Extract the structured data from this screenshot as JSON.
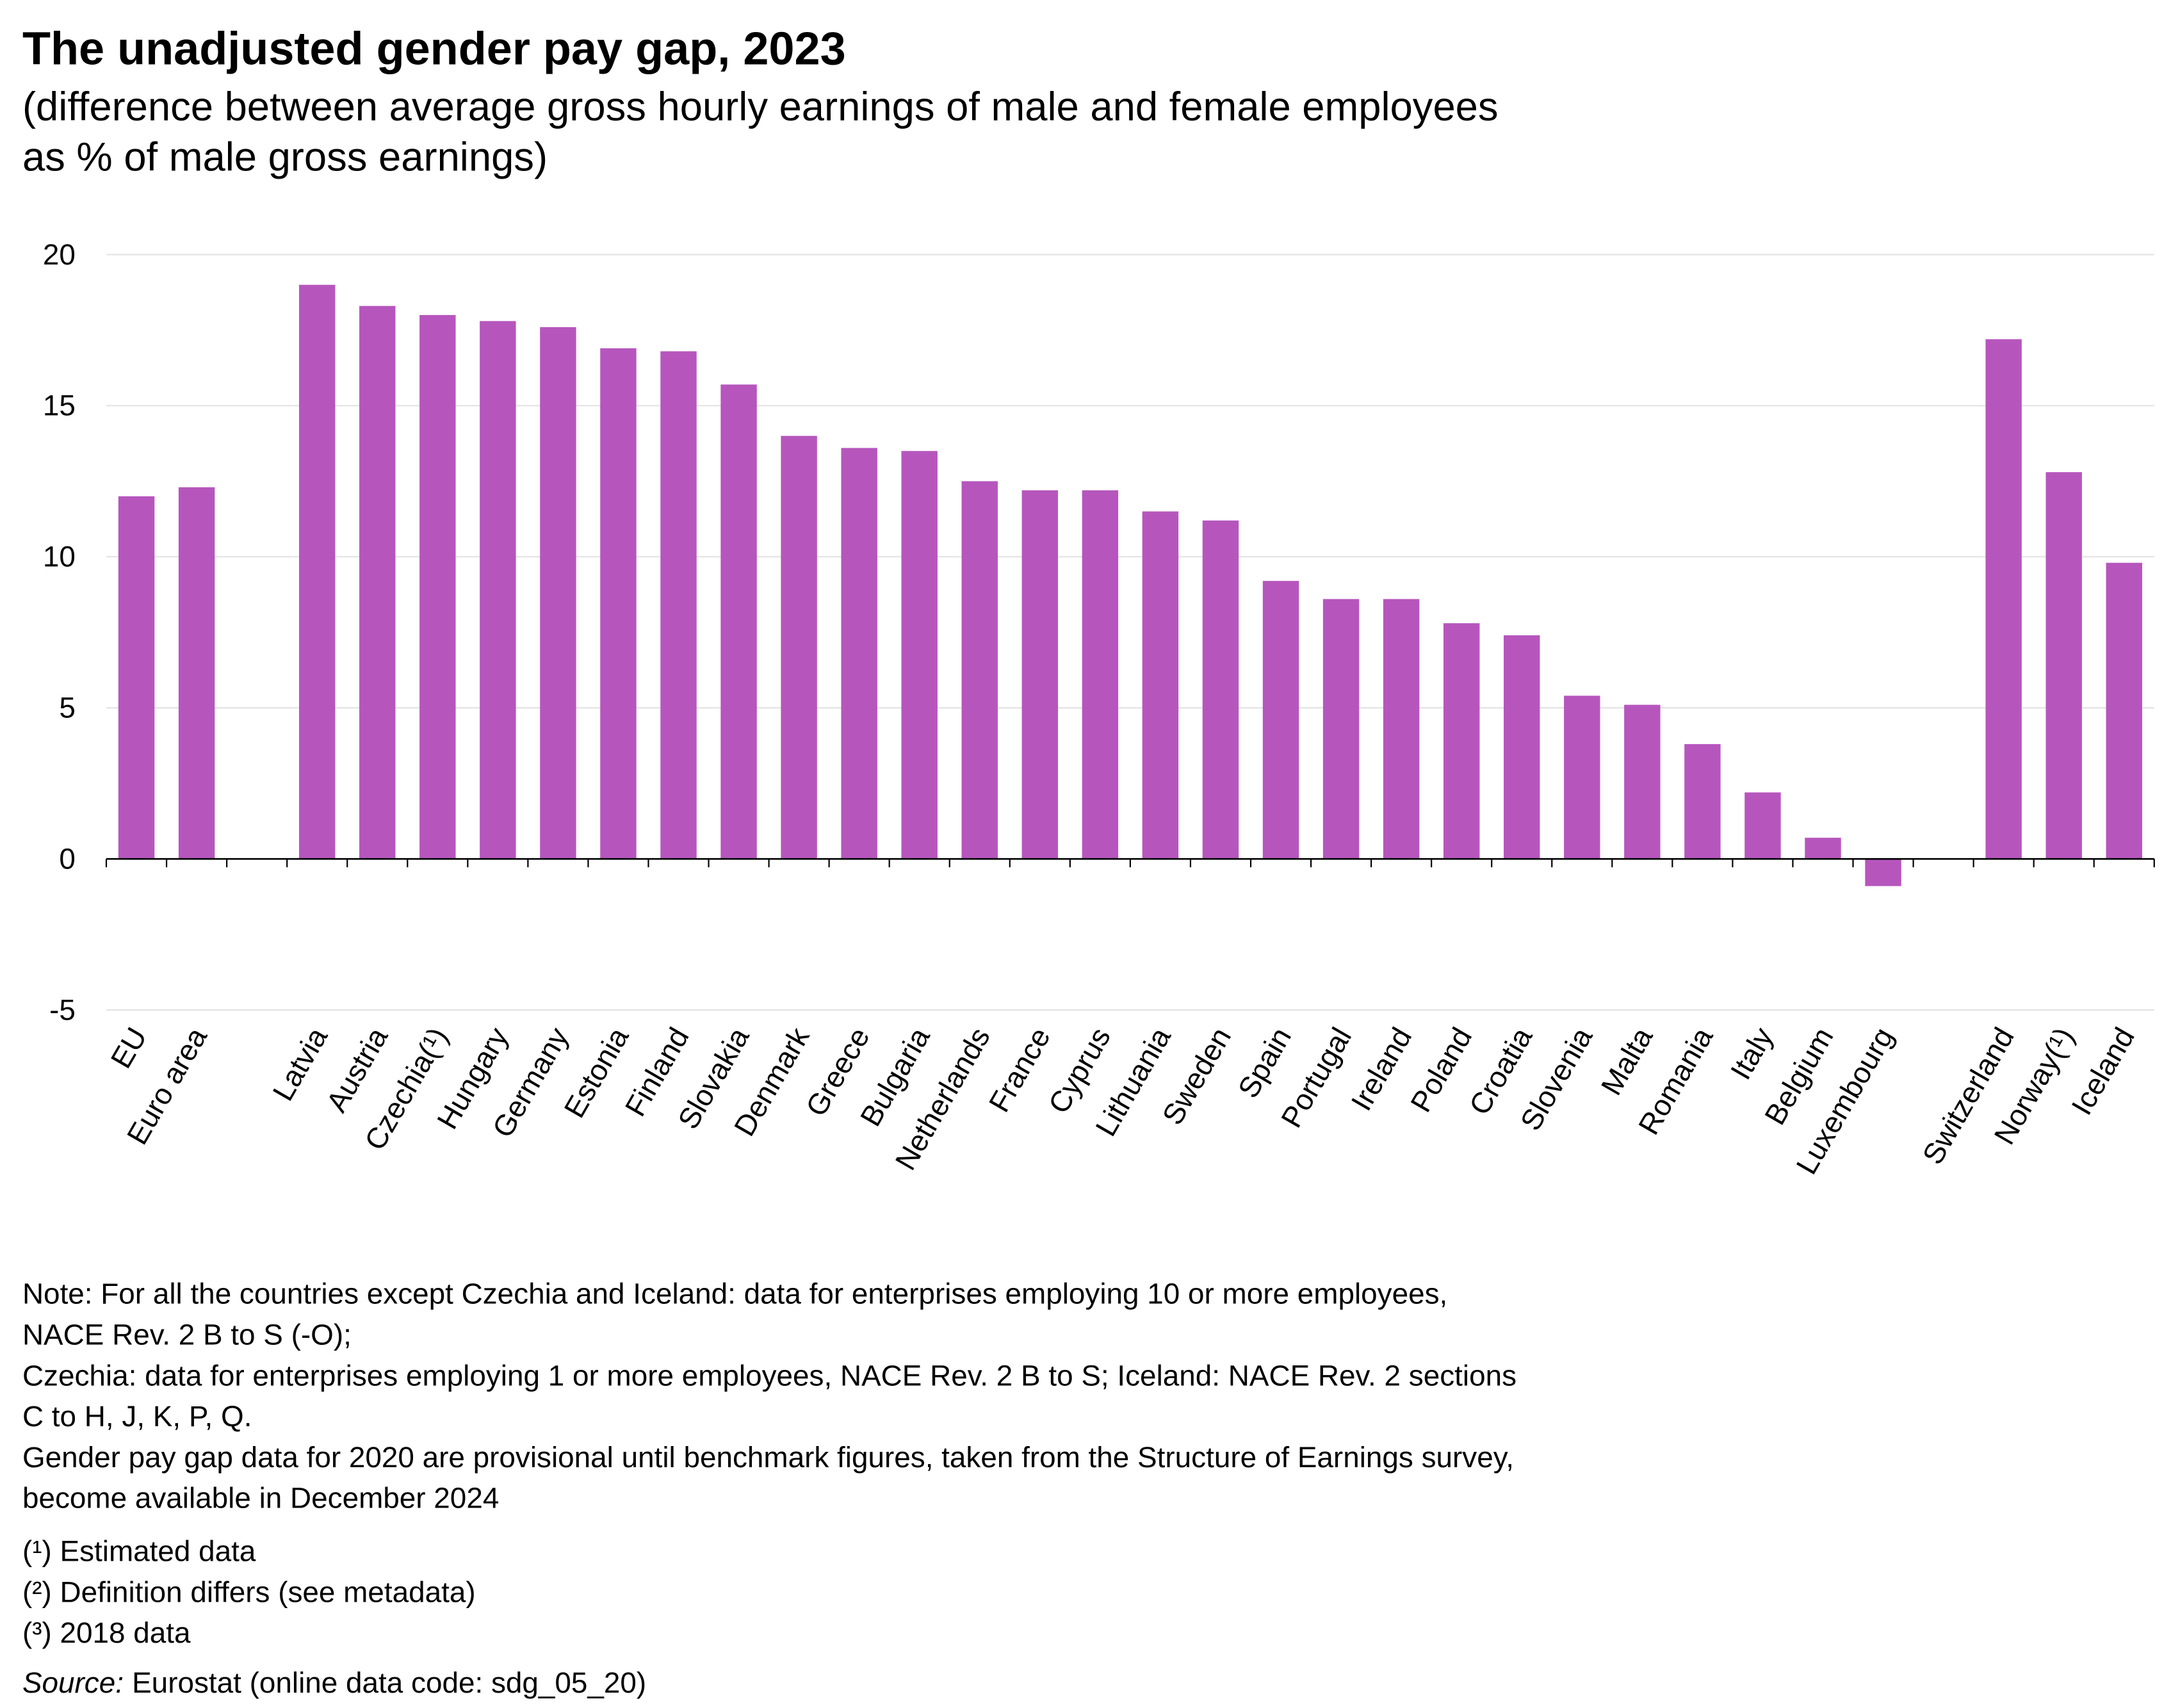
{
  "chart_data": {
    "type": "bar",
    "title": "The unadjusted gender pay gap, 2023",
    "subtitle": [
      "(difference between average gross hourly earnings of male and female employees",
      "as % of male gross earnings)"
    ],
    "categories": [
      "EU",
      "Euro area",
      null,
      "Latvia",
      "Austria",
      "Czechia(¹)",
      "Hungary",
      "Germany",
      "Estonia",
      "Finland",
      "Slovakia",
      "Denmark",
      "Greece",
      "Bulgaria",
      "Netherlands",
      "France",
      "Cyprus",
      "Lithuania",
      "Sweden",
      "Spain",
      "Portugal",
      "Ireland",
      "Poland",
      "Croatia",
      "Slovenia",
      "Malta",
      "Romania",
      "Italy",
      "Belgium",
      "Luxembourg",
      null,
      "Switzerland",
      "Norway(¹)",
      "Iceland"
    ],
    "values": [
      12.0,
      12.3,
      null,
      19.0,
      18.3,
      18.0,
      17.8,
      17.6,
      16.9,
      16.8,
      15.7,
      14.0,
      13.6,
      13.5,
      12.5,
      12.2,
      12.2,
      11.5,
      11.2,
      9.2,
      8.6,
      8.6,
      7.8,
      7.4,
      5.4,
      5.1,
      3.8,
      2.2,
      0.7,
      -0.9,
      null,
      17.2,
      12.8,
      9.8
    ],
    "color": "#b656bd",
    "ylim": [
      -5,
      20
    ],
    "yticks": [
      -5,
      0,
      5,
      10,
      15,
      20
    ],
    "grid": true,
    "notes": [
      "Note: For all the countries except Czechia and Iceland: data for enterprises employing 10 or more employees,",
      "NACE Rev. 2 B to S (-O);",
      "Czechia: data for enterprises employing 1 or more employees, NACE Rev. 2 B to S; Iceland: NACE Rev. 2 sections",
      "C to H, J, K, P, Q.",
      "Gender pay gap data for 2020 are provisional until benchmark figures, taken from the Structure of Earnings survey,",
      "become available in December 2024"
    ],
    "footnotes": [
      "(¹) Estimated data",
      "(²) Definition differs (see metadata)",
      "(³) 2018 data"
    ],
    "source_label": "Source:",
    "source": "Eurostat (online data code: sdg_05_20)"
  }
}
